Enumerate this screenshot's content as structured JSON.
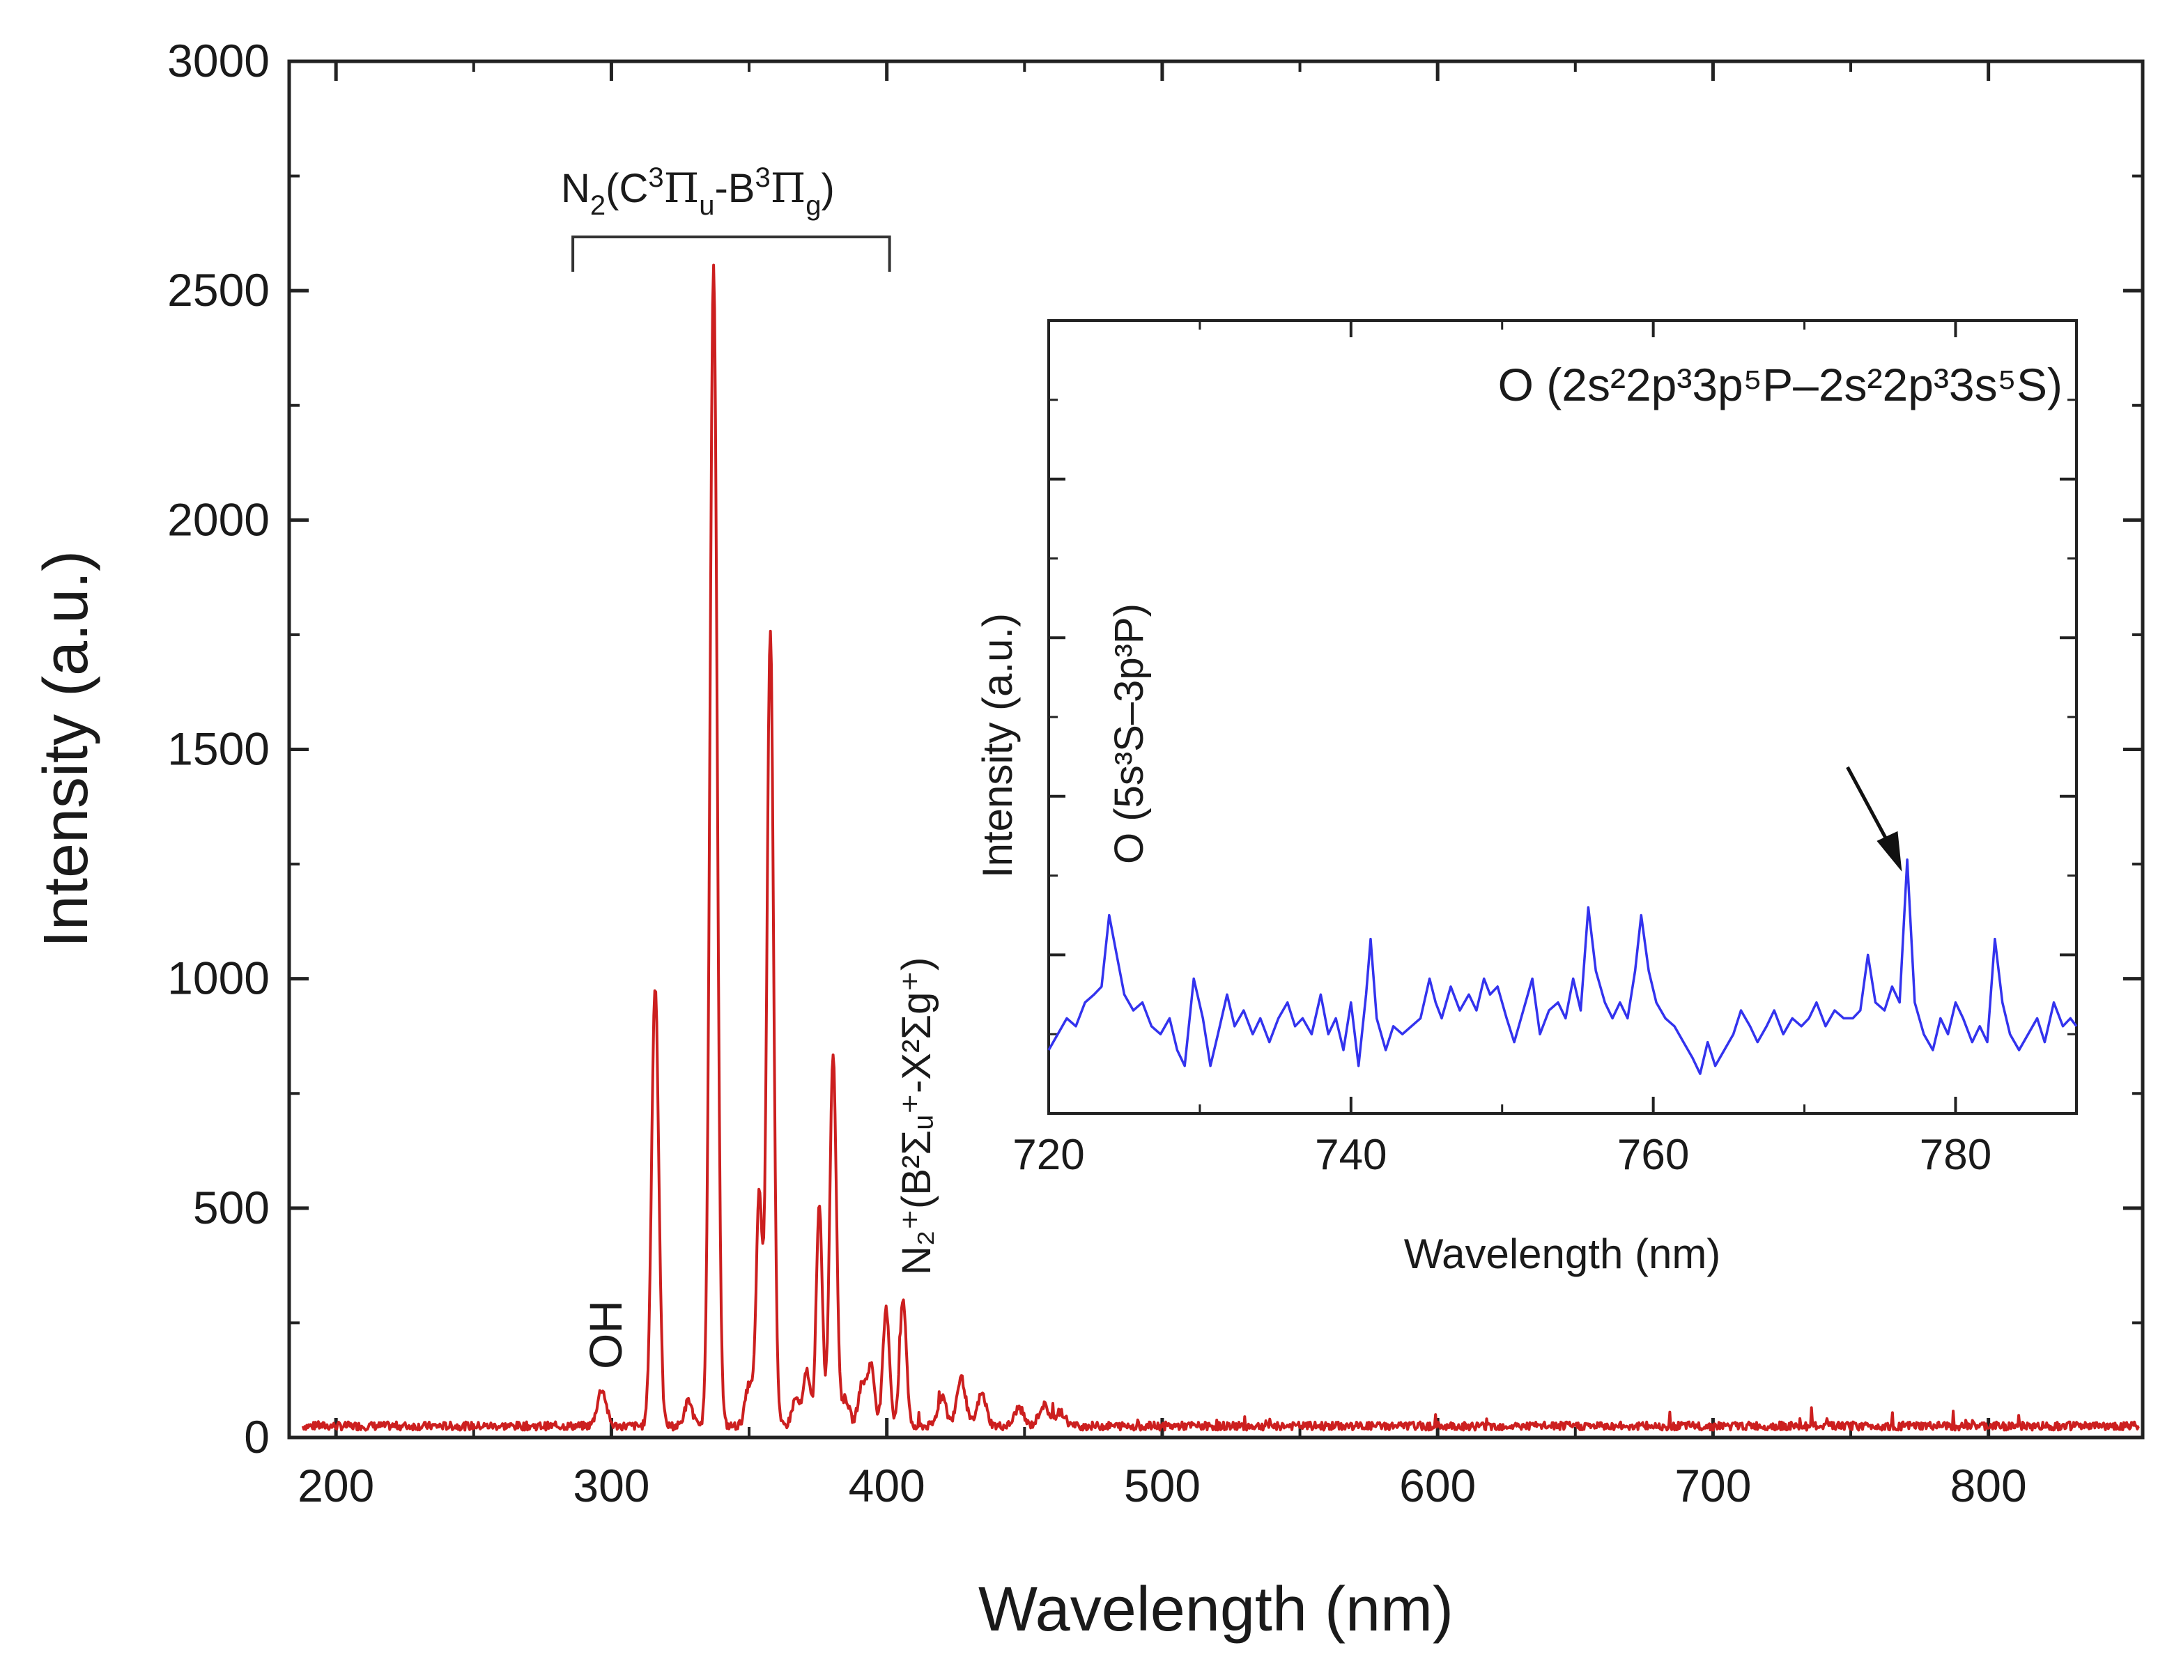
{
  "chart_data": [
    {
      "type": "line",
      "id": "main",
      "xlabel": "Wavelength (nm)",
      "ylabel": "Intensity (a.u.)",
      "xlim": [
        183,
        856
      ],
      "ylim": [
        0,
        3000
      ],
      "xticks": [
        200,
        300,
        400,
        500,
        600,
        700,
        800
      ],
      "xtick_labels": [
        "200",
        "300",
        "400",
        "500",
        "600",
        "700",
        "800"
      ],
      "yticks": [
        0,
        500,
        1000,
        1500,
        2000,
        2500,
        3000
      ],
      "ytick_labels": [
        "0",
        "500",
        "1000",
        "1500",
        "2000",
        "2500",
        "3000"
      ],
      "color": "#cc1f1f",
      "baseline": 25,
      "peaks": [
        {
          "x": 296.5,
          "y": 80,
          "w": 1.6
        },
        {
          "x": 315.9,
          "y": 960,
          "w": 1.3
        },
        {
          "x": 328,
          "y": 55,
          "w": 1.4
        },
        {
          "x": 337.1,
          "y": 2530,
          "w": 1.3
        },
        {
          "x": 350,
          "y": 90,
          "w": 1.4
        },
        {
          "x": 353.7,
          "y": 505,
          "w": 1.1
        },
        {
          "x": 357.7,
          "y": 1740,
          "w": 1.2
        },
        {
          "x": 367,
          "y": 60,
          "w": 1.4
        },
        {
          "x": 371,
          "y": 120,
          "w": 1.2
        },
        {
          "x": 375.5,
          "y": 480,
          "w": 1.1
        },
        {
          "x": 380.5,
          "y": 815,
          "w": 1.2
        },
        {
          "x": 385,
          "y": 60,
          "w": 1.4
        },
        {
          "x": 391,
          "y": 90,
          "w": 1.4
        },
        {
          "x": 394.3,
          "y": 130,
          "w": 1.3
        },
        {
          "x": 399.8,
          "y": 255,
          "w": 1.2
        },
        {
          "x": 405.9,
          "y": 275,
          "w": 1.2
        },
        {
          "x": 420,
          "y": 65,
          "w": 1.5
        },
        {
          "x": 427,
          "y": 105,
          "w": 1.6
        },
        {
          "x": 434.5,
          "y": 70,
          "w": 1.6
        },
        {
          "x": 448,
          "y": 40,
          "w": 1.6
        },
        {
          "x": 457,
          "y": 45,
          "w": 1.8
        },
        {
          "x": 463,
          "y": 30,
          "w": 1.8
        }
      ],
      "annotations": {
        "n2_label_main": "N",
        "n2_label_sub": "2",
        "n2_label_rest_a": "(C",
        "n2_label_sup_a": "3",
        "n2_label_pi_a": "Π",
        "n2_label_sub_a": "u",
        "n2_label_dash": "-B",
        "n2_label_sup_b": "3",
        "n2_label_pi_b": "Π",
        "n2_label_sub_b": "g",
        "n2_label_close": ")",
        "n2_bracket_range": [
          286,
          401
        ],
        "oh_label": "OH",
        "n2plus_label": "N₂⁺(B²Σᵤ⁺-X²Σg⁺)"
      }
    },
    {
      "type": "line",
      "id": "inset",
      "xlabel": "Wavelength (nm)",
      "ylabel": "Intensity (a.u.)",
      "xlim": [
        720,
        788
      ],
      "ylim": [
        0,
        100
      ],
      "xticks": [
        720,
        740,
        760,
        780
      ],
      "xtick_labels": [
        "720",
        "740",
        "760",
        "780"
      ],
      "color": "#3333ee",
      "points": [
        [
          720.0,
          8
        ],
        [
          720.6,
          10
        ],
        [
          721.2,
          12
        ],
        [
          721.8,
          11
        ],
        [
          722.4,
          14
        ],
        [
          723.0,
          15
        ],
        [
          723.5,
          16
        ],
        [
          724.0,
          25
        ],
        [
          724.5,
          20
        ],
        [
          725.0,
          15
        ],
        [
          725.6,
          13
        ],
        [
          726.2,
          14
        ],
        [
          726.8,
          11
        ],
        [
          727.4,
          10
        ],
        [
          728.0,
          12
        ],
        [
          728.5,
          8
        ],
        [
          729.0,
          6
        ],
        [
          729.6,
          17
        ],
        [
          730.2,
          12
        ],
        [
          730.7,
          6
        ],
        [
          731.2,
          10
        ],
        [
          731.8,
          15
        ],
        [
          732.3,
          11
        ],
        [
          732.9,
          13
        ],
        [
          733.5,
          10
        ],
        [
          734.0,
          12
        ],
        [
          734.6,
          9
        ],
        [
          735.2,
          12
        ],
        [
          735.8,
          14
        ],
        [
          736.3,
          11
        ],
        [
          736.8,
          12
        ],
        [
          737.4,
          10
        ],
        [
          738.0,
          15
        ],
        [
          738.5,
          10
        ],
        [
          739.0,
          12
        ],
        [
          739.5,
          8
        ],
        [
          740.0,
          14
        ],
        [
          740.5,
          6
        ],
        [
          741.0,
          15
        ],
        [
          741.3,
          22
        ],
        [
          741.7,
          12
        ],
        [
          742.3,
          8
        ],
        [
          742.8,
          11
        ],
        [
          743.4,
          10
        ],
        [
          744.0,
          11
        ],
        [
          744.6,
          12
        ],
        [
          745.2,
          17
        ],
        [
          745.6,
          14
        ],
        [
          746.0,
          12
        ],
        [
          746.6,
          16
        ],
        [
          747.2,
          13
        ],
        [
          747.8,
          15
        ],
        [
          748.3,
          13
        ],
        [
          748.8,
          17
        ],
        [
          749.2,
          15
        ],
        [
          749.7,
          16
        ],
        [
          750.3,
          12
        ],
        [
          750.8,
          9
        ],
        [
          751.4,
          13
        ],
        [
          752.0,
          17
        ],
        [
          752.5,
          10
        ],
        [
          753.1,
          13
        ],
        [
          753.7,
          14
        ],
        [
          754.2,
          12
        ],
        [
          754.7,
          17
        ],
        [
          755.2,
          13
        ],
        [
          755.7,
          26
        ],
        [
          756.2,
          18
        ],
        [
          756.8,
          14
        ],
        [
          757.3,
          12
        ],
        [
          757.8,
          14
        ],
        [
          758.3,
          12
        ],
        [
          758.8,
          18
        ],
        [
          759.2,
          25
        ],
        [
          759.7,
          18
        ],
        [
          760.2,
          14
        ],
        [
          760.8,
          12
        ],
        [
          761.4,
          11
        ],
        [
          762.0,
          9
        ],
        [
          762.6,
          7
        ],
        [
          763.1,
          5
        ],
        [
          763.6,
          9
        ],
        [
          764.1,
          6
        ],
        [
          764.7,
          8
        ],
        [
          765.3,
          10
        ],
        [
          765.8,
          13
        ],
        [
          766.4,
          11
        ],
        [
          766.9,
          9
        ],
        [
          767.5,
          11
        ],
        [
          768.0,
          13
        ],
        [
          768.6,
          10
        ],
        [
          769.2,
          12
        ],
        [
          769.8,
          11
        ],
        [
          770.3,
          12
        ],
        [
          770.8,
          14
        ],
        [
          771.4,
          11
        ],
        [
          772.0,
          13
        ],
        [
          772.6,
          12
        ],
        [
          773.2,
          12
        ],
        [
          773.7,
          13
        ],
        [
          774.2,
          20
        ],
        [
          774.7,
          14
        ],
        [
          775.3,
          13
        ],
        [
          775.8,
          16
        ],
        [
          776.3,
          14
        ],
        [
          776.8,
          32
        ],
        [
          777.3,
          14
        ],
        [
          777.9,
          10
        ],
        [
          778.5,
          8
        ],
        [
          779.0,
          12
        ],
        [
          779.5,
          10
        ],
        [
          780.0,
          14
        ],
        [
          780.5,
          12
        ],
        [
          781.1,
          9
        ],
        [
          781.6,
          11
        ],
        [
          782.1,
          9
        ],
        [
          782.6,
          22
        ],
        [
          783.1,
          14
        ],
        [
          783.6,
          10
        ],
        [
          784.2,
          8
        ],
        [
          784.8,
          10
        ],
        [
          785.4,
          12
        ],
        [
          785.9,
          9
        ],
        [
          786.5,
          14
        ],
        [
          787.1,
          11
        ],
        [
          787.6,
          12
        ],
        [
          788.0,
          11
        ]
      ],
      "annotations": {
        "o777_label": "O (2s²2p³3p⁵P–2s²2p³3s⁵S)",
        "o725_label": "O (5s³S–3p³P)",
        "arrow_target_x": 777.0
      }
    }
  ]
}
